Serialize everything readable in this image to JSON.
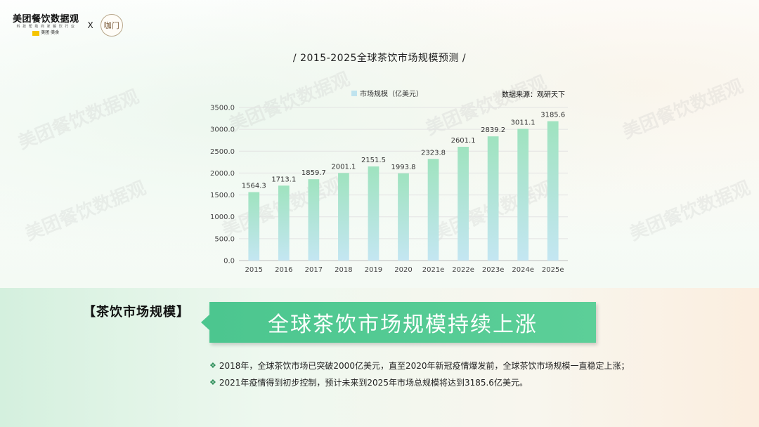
{
  "header": {
    "brand_name": "美团餐饮数据观",
    "brand_tagline": "科 技 帮 助 商 家 餐 饮 行 业 ",
    "brand_sub": "美团·美食",
    "collab_symbol": "X",
    "partner_logo_text": "咖门"
  },
  "watermark_text": "美团餐饮数据观",
  "chart_title": "/ 2015-2025全球茶饮市场规模预测 /",
  "legend_label": "市场规模（亿美元）",
  "source": "数据来源：观研天下",
  "chart_data": {
    "type": "bar",
    "categories": [
      "2015",
      "2016",
      "2017",
      "2018",
      "2019",
      "2020",
      "2021e",
      "2022e",
      "2023e",
      "2024e",
      "2025e"
    ],
    "series": [
      {
        "name": "市场规模（亿美元）",
        "values": [
          1564.3,
          1713.1,
          1859.7,
          2001.1,
          2151.5,
          1993.8,
          2323.8,
          2601.1,
          2839.2,
          3011.1,
          3185.6
        ]
      }
    ],
    "data_labels": [
      "1564.3",
      "1713.1",
      "1859.7",
      "2001.1",
      "2151.5",
      "1993.8",
      "2323.8",
      "2601.1",
      "2839.2",
      "3011.1",
      "3185.6"
    ],
    "yticks": [
      "0.0",
      "500.0",
      "1000.0",
      "1500.0",
      "2000.0",
      "2500.0",
      "3000.0",
      "3500.0"
    ],
    "ylim": [
      0,
      3500
    ],
    "grid": true,
    "colors": {
      "bar_top": "#9fe3bf",
      "bar_bottom": "#c4e6f2"
    }
  },
  "section": {
    "label": "【茶饮市场规模】",
    "headline": "全球茶饮市场规模持续上涨",
    "bullets": [
      "2018年，全球茶饮市场已突破2000亿美元，直至2020年新冠疫情爆发前，全球茶饮市场规模一直稳定上涨；",
      "2021年疫情得到初步控制，预计未来到2025年市场总规模将达到3185.6亿美元。"
    ]
  }
}
